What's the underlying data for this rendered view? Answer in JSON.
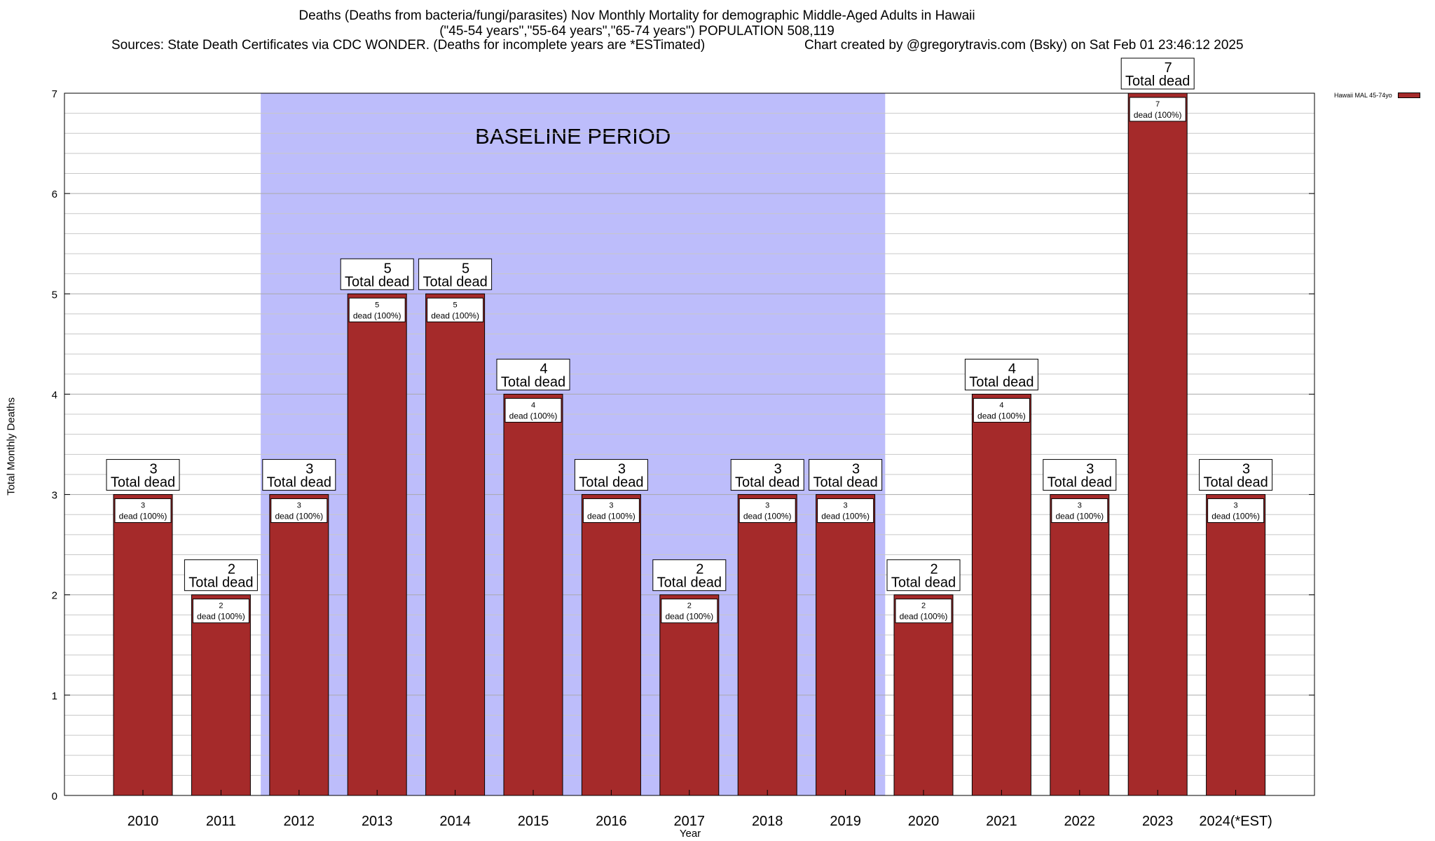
{
  "chart_data": {
    "type": "bar",
    "title_line1": "Deaths (Deaths from bacteria/fungi/parasites) Nov Monthly Mortality for demographic Middle-Aged Adults in Hawaii",
    "title_line2": "(\"45-54 years\",\"55-64 years\",\"65-74 years\") POPULATION 508,119",
    "sources": "Sources: State Death Certificates via CDC WONDER. (Deaths for incomplete years are *ESTimated)",
    "credit": "Chart created by @gregorytravis.com (Bsky) on Sat Feb 01 23:46:12 2025",
    "xlabel": "Year",
    "ylabel": "Total Monthly Deaths",
    "ylim": [
      0,
      7
    ],
    "yticks": [
      "0",
      "1",
      "2",
      "3",
      "4",
      "5",
      "6",
      "7"
    ],
    "grid": true,
    "legend": {
      "label": "Hawaii MAL 45-74yo",
      "position": "top-right"
    },
    "baseline": {
      "label": "BASELINE PERIOD",
      "from": "2012",
      "to": "2019",
      "color": "#bdbdfb"
    },
    "bar_color": "#a52a2a",
    "categories": [
      "2010",
      "2011",
      "2012",
      "2013",
      "2014",
      "2015",
      "2016",
      "2017",
      "2018",
      "2019",
      "2020",
      "2021",
      "2022",
      "2023",
      "2024(*EST)"
    ],
    "series": [
      {
        "name": "Hawaii MAL 45-74yo",
        "values": [
          3,
          2,
          3,
          5,
          5,
          4,
          3,
          2,
          3,
          3,
          2,
          4,
          3,
          7,
          3
        ]
      }
    ],
    "top_label_suffix": "Total dead",
    "inner_label_suffix": "dead (100%)"
  }
}
